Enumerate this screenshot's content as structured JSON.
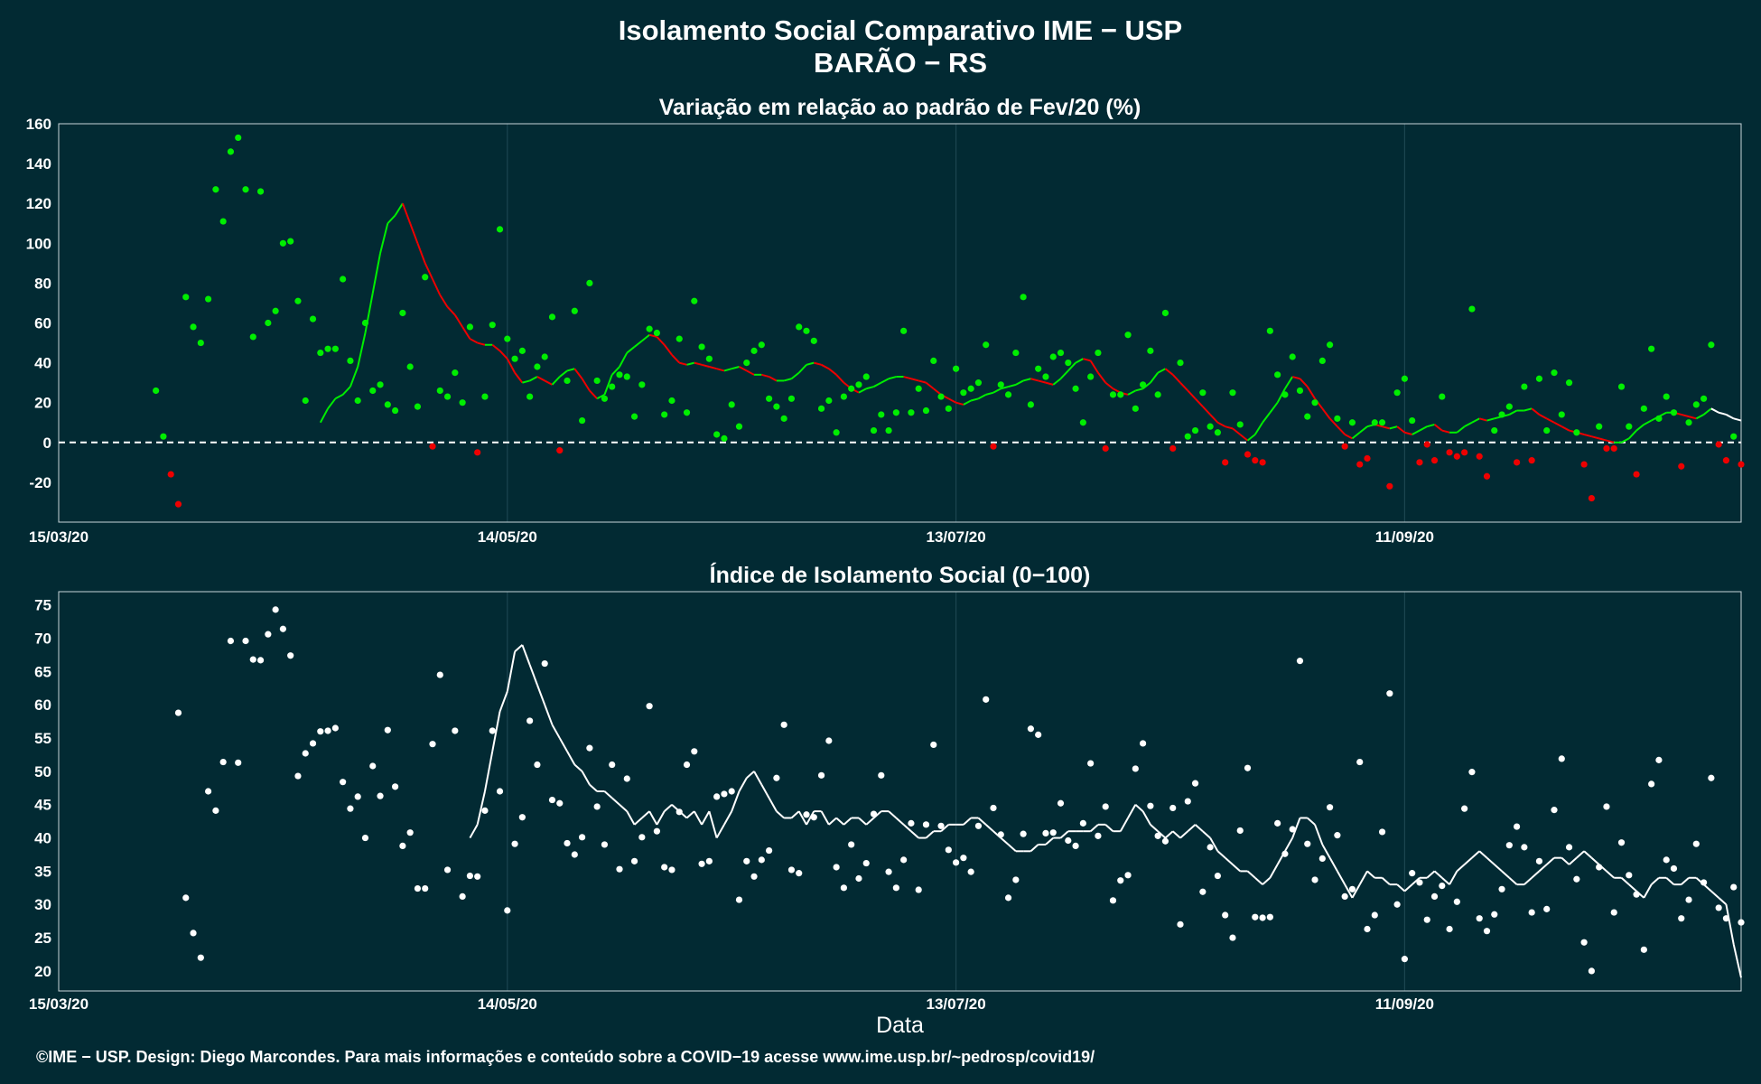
{
  "header": {
    "title": "Isolamento Social Comparativo IME − USP",
    "subtitle": "BARÃO − RS"
  },
  "footer": {
    "credit": "©IME − USP. Design: Diego Marcondes. Para mais informações e conteúdo sobre a COVID−19 acesse www.ime.usp.br/~pedrosp/covid19/"
  },
  "colors": {
    "background": "#022a33",
    "frame": "#c8d4d8",
    "grid": "#1c4550",
    "above_zero": "#00ee00",
    "below_zero": "#ee0000",
    "index_series": "#ffffff"
  },
  "chart_data": [
    {
      "type": "scatter",
      "title": "Variação em relação ao padrão de Fev/20 (%)",
      "xlabel": "",
      "ylabel": "",
      "x_start": "15/03/20",
      "x_end": "26/10/20",
      "xticks": [
        "15/03/20",
        "14/05/20",
        "13/07/20",
        "11/09/20"
      ],
      "ylim": [
        -40,
        160
      ],
      "yticks": [
        -20,
        0,
        20,
        40,
        60,
        80,
        100,
        120,
        140,
        160
      ],
      "reference_line": 0,
      "grid": true,
      "legend": "none",
      "series": [
        {
          "kind": "points",
          "values": [
            26,
            3,
            -16,
            -31,
            73,
            58,
            50,
            72,
            127,
            111,
            146,
            153,
            127,
            53,
            126,
            60,
            66,
            100,
            101,
            71,
            21,
            62,
            45,
            47,
            47,
            82,
            41,
            21,
            60,
            26,
            29,
            19,
            16,
            65,
            38,
            18,
            83,
            -2,
            26,
            23,
            35,
            20,
            58,
            -5,
            23,
            59,
            107,
            52,
            42,
            46,
            23,
            38,
            43,
            63,
            -4,
            31,
            66,
            11,
            80,
            31,
            22,
            28,
            34,
            33,
            13,
            29,
            57,
            55,
            14,
            21,
            52,
            15,
            71,
            48,
            42,
            4,
            2,
            19,
            8,
            40,
            46,
            49,
            22,
            18,
            12,
            22,
            58,
            56,
            51,
            17,
            21,
            5,
            23,
            27,
            29,
            33,
            6,
            14,
            6,
            15,
            56,
            15,
            27,
            16,
            41,
            23,
            17,
            37,
            25,
            27,
            30,
            49,
            -2,
            29,
            24,
            45,
            73,
            19,
            37,
            33,
            43,
            45,
            40,
            27,
            10,
            33,
            45,
            -3,
            24,
            24,
            54,
            17,
            29,
            46,
            24,
            65,
            -3,
            40,
            3,
            6,
            25,
            8,
            5,
            -10,
            25,
            9,
            -6,
            -9,
            -10,
            56,
            34,
            24,
            43,
            26,
            13,
            20,
            41,
            49,
            12,
            -2,
            10,
            -11,
            -8,
            10,
            10,
            -22,
            25,
            32,
            11,
            -10,
            -1,
            -9,
            23,
            -5,
            -7,
            -5,
            67,
            -7,
            -17,
            6,
            14,
            18,
            -10,
            28,
            -9,
            32,
            6,
            35,
            14,
            30,
            5,
            -11,
            -28,
            8,
            -3,
            -3,
            28,
            8,
            -16,
            17,
            47,
            12,
            23,
            15,
            -12,
            10,
            19,
            22,
            49,
            -1,
            -9,
            3,
            -11
          ]
        },
        {
          "kind": "moving_average",
          "values": [
            10,
            17,
            22,
            24,
            28,
            38,
            55,
            75,
            95,
            110,
            114,
            120,
            110,
            100,
            90,
            82,
            74,
            68,
            64,
            58,
            52,
            50,
            49,
            49,
            46,
            42,
            35,
            30,
            31,
            33,
            31,
            29,
            33,
            36,
            37,
            32,
            26,
            22,
            24,
            34,
            38,
            45,
            48,
            51,
            54,
            53,
            49,
            44,
            40,
            39,
            40,
            39,
            38,
            37,
            36,
            37,
            38,
            36,
            34,
            34,
            33,
            31,
            31,
            32,
            35,
            39,
            40,
            39,
            37,
            34,
            30,
            27,
            25,
            27,
            28,
            30,
            32,
            33,
            33,
            32,
            31,
            30,
            27,
            24,
            22,
            20,
            19,
            21,
            22,
            24,
            25,
            27,
            28,
            29,
            31,
            32,
            31,
            30,
            29,
            32,
            36,
            40,
            42,
            41,
            35,
            30,
            27,
            25,
            24,
            26,
            27,
            30,
            35,
            37,
            34,
            30,
            26,
            22,
            18,
            14,
            10,
            8,
            7,
            4,
            1,
            4,
            10,
            15,
            20,
            27,
            33,
            32,
            28,
            22,
            17,
            12,
            8,
            4,
            2,
            5,
            8,
            9,
            8,
            7,
            8,
            5,
            4,
            6,
            8,
            9,
            6,
            5,
            5,
            8,
            10,
            12,
            11,
            12,
            13,
            14,
            16,
            16,
            17,
            14,
            12,
            10,
            8,
            6,
            5,
            4,
            3,
            2,
            1,
            0,
            0,
            2,
            6,
            9,
            11,
            13,
            15,
            15,
            14,
            13,
            12,
            14,
            17,
            15,
            14,
            12,
            11
          ]
        }
      ]
    },
    {
      "type": "scatter",
      "title": "Índice de Isolamento Social (0−100)",
      "xlabel": "Data",
      "ylabel": "",
      "x_start": "15/03/20",
      "x_end": "26/10/20",
      "xticks": [
        "15/03/20",
        "14/05/20",
        "13/07/20",
        "11/09/20"
      ],
      "ylim": [
        17,
        77
      ],
      "yticks": [
        20,
        25,
        30,
        35,
        40,
        45,
        50,
        55,
        60,
        65,
        70,
        75
      ],
      "grid": true,
      "legend": "none",
      "series": [
        {
          "kind": "points",
          "values": [
            58.8,
            31,
            25.7,
            22,
            47,
            44.1,
            51.4,
            69.6,
            51.3,
            69.6,
            66.8,
            66.7,
            70.6,
            74.3,
            71.4,
            67.4,
            49.3,
            52.7,
            54.2,
            56,
            56.1,
            56.5,
            48.4,
            44.4,
            46.2,
            40,
            50.8,
            46.3,
            56.2,
            47.7,
            38.8,
            40.8,
            32.4,
            32.4,
            54.1,
            64.5,
            35.2,
            56.1,
            31.2,
            34.3,
            34.2,
            44.1,
            56.1,
            47,
            29.1,
            39.1,
            43.1,
            57.6,
            51,
            66.2,
            45.7,
            45.2,
            39.2,
            37.5,
            40.1,
            53.5,
            44.7,
            39,
            51,
            35.3,
            48.9,
            36.5,
            40.1,
            59.8,
            41,
            35.6,
            35.2,
            43.9,
            51,
            53,
            36.1,
            36.5,
            46.2,
            46.6,
            47,
            30.7,
            36.5,
            34.2,
            36.7,
            38.1,
            49,
            57,
            35.2,
            34.7,
            43.5,
            43.1,
            49.4,
            54.6,
            35.6,
            32.5,
            39,
            33.9,
            36.2,
            43.6,
            49.4,
            34.9,
            32.5,
            36.7,
            42.2,
            32.2,
            42,
            54,
            41.8,
            38.2,
            36.3,
            37,
            34.9,
            41.8,
            60.8,
            44.5,
            40.5,
            31,
            33.7,
            40.6,
            56.4,
            55.5,
            40.7,
            40.8,
            45.2,
            39.6,
            38.8,
            42.2,
            51.2,
            40.3,
            44.7,
            30.6,
            33.6,
            34.4,
            50.4,
            54.2,
            44.8,
            40.3,
            39.5,
            44.5,
            27,
            45.5,
            48.2,
            31.9,
            38.6,
            34.3,
            28.4,
            25,
            41.1,
            50.5,
            28.1,
            28,
            28.1,
            42.2,
            37.6,
            41.3,
            66.6,
            39.1,
            33.7,
            36.9,
            44.6,
            40.4,
            31.2,
            32.3,
            51.4,
            26.3,
            28.4,
            40.9,
            61.7,
            30,
            21.8,
            34.7,
            33.3,
            27.7,
            31.2,
            32.8,
            26.3,
            30.4,
            44.4,
            49.9,
            27.9,
            26,
            28.5,
            32.3,
            38.9,
            41.7,
            38.6,
            28.8,
            36.5,
            29.3,
            44.2,
            51.9,
            38.6,
            33.8,
            24.3,
            20,
            35.6,
            44.7,
            28.8,
            39.3,
            34.4,
            31.5,
            23.2,
            48.1,
            51.7,
            36.7,
            35.4,
            27.9,
            30.7,
            39.1,
            33.3,
            49,
            29.5,
            27.9,
            32.6,
            27.3
          ]
        },
        {
          "kind": "moving_average",
          "values": [
            40,
            42,
            47,
            53,
            59,
            62,
            68,
            69,
            66,
            63,
            60,
            57,
            55,
            53,
            51,
            50,
            48,
            47,
            47,
            46,
            45,
            44,
            42,
            43,
            44,
            42,
            44,
            45,
            44,
            43,
            44,
            42,
            44,
            40,
            42,
            44,
            47,
            49,
            50,
            48,
            46,
            44,
            43,
            43,
            44,
            42,
            44,
            44,
            42,
            43,
            42,
            43,
            43,
            42,
            43,
            44,
            44,
            43,
            42,
            41,
            40,
            40,
            41,
            41,
            42,
            42,
            42,
            43,
            43,
            42,
            41,
            40,
            39,
            38,
            38,
            38,
            39,
            39,
            40,
            40,
            41,
            41,
            41,
            41,
            42,
            42,
            41,
            41,
            43,
            45,
            44,
            42,
            41,
            40,
            41,
            40,
            41,
            42,
            41,
            40,
            38,
            37,
            36,
            35,
            35,
            34,
            33,
            34,
            36,
            38,
            40,
            43,
            43,
            42,
            39,
            37,
            35,
            33,
            31,
            33,
            35,
            34,
            34,
            33,
            33,
            32,
            33,
            34,
            34,
            35,
            34,
            33,
            35,
            36,
            37,
            38,
            37,
            36,
            35,
            34,
            33,
            33,
            34,
            35,
            36,
            37,
            37,
            36,
            37,
            38,
            37,
            36,
            35,
            34,
            34,
            33,
            32,
            31,
            33,
            34,
            34,
            33,
            33,
            34,
            34,
            33,
            32,
            31,
            30,
            24,
            19
          ]
        }
      ]
    }
  ]
}
